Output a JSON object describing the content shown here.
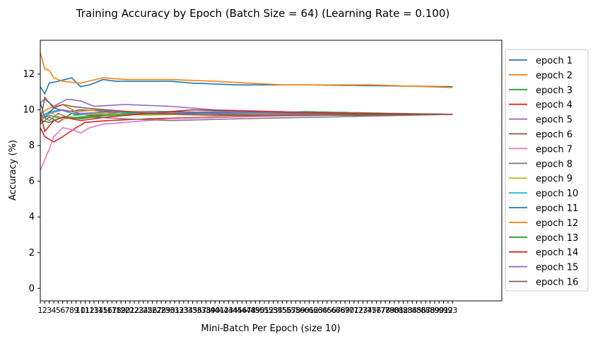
{
  "chart_data": {
    "type": "line",
    "title": "Training Accuracy by Epoch (Batch Size = 64) (Learning Rate = 0.100)",
    "xlabel": "Mini-Batch Per Epoch (size 10)",
    "ylabel": "Accuracy (%)",
    "ylim": [
      -0.7,
      13.9
    ],
    "xlim": [
      1,
      104
    ],
    "yticks": [
      0,
      2,
      4,
      6,
      8,
      10,
      12
    ],
    "x_tick_labels": [
      "1",
      "2",
      "3",
      "4",
      "5",
      "6",
      "7",
      "8",
      "9",
      "10",
      "11",
      "12",
      "13",
      "14",
      "15",
      "16",
      "17",
      "18",
      "19",
      "20",
      "21",
      "22",
      "23",
      "24",
      "25",
      "26",
      "27",
      "28",
      "29",
      "30",
      "31",
      "32",
      "33",
      "34",
      "35",
      "36",
      "37",
      "38",
      "39",
      "40",
      "41",
      "42",
      "43",
      "44",
      "45",
      "46",
      "47",
      "48",
      "49",
      "50",
      "51",
      "52",
      "53",
      "54",
      "55",
      "56",
      "57",
      "58",
      "59",
      "60",
      "61",
      "62",
      "63",
      "64",
      "65",
      "66",
      "67",
      "68",
      "69",
      "70",
      "71",
      "72",
      "73",
      "74",
      "75",
      "76",
      "77",
      "78",
      "79",
      "80",
      "81",
      "82",
      "83",
      "84",
      "85",
      "86",
      "87",
      "88",
      "89",
      "90",
      "91",
      "92",
      "93"
    ],
    "legend_position": "right, outside plot",
    "colors": [
      "#1f77b4",
      "#ff7f0e",
      "#2ca02c",
      "#d62728",
      "#9467bd",
      "#8c564b",
      "#e377c2",
      "#7f7f7f",
      "#bcbd22",
      "#17becf",
      "#1f77b4",
      "#ff7f0e",
      "#2ca02c",
      "#d62728",
      "#9467bd",
      "#8c564b"
    ],
    "series": [
      {
        "name": "epoch 1",
        "anchors": [
          [
            1,
            11.3
          ],
          [
            2,
            10.9
          ],
          [
            3,
            11.5
          ],
          [
            5,
            11.6
          ],
          [
            8,
            11.8
          ],
          [
            10,
            11.3
          ],
          [
            12,
            11.4
          ],
          [
            15,
            11.7
          ],
          [
            18,
            11.6
          ],
          [
            30,
            11.6
          ],
          [
            35,
            11.5
          ],
          [
            45,
            11.4
          ],
          [
            60,
            11.4
          ],
          [
            93,
            11.3
          ]
        ]
      },
      {
        "name": "epoch 2",
        "anchors": [
          [
            1,
            13.2
          ],
          [
            2,
            12.3
          ],
          [
            3,
            12.2
          ],
          [
            4,
            11.8
          ],
          [
            6,
            11.6
          ],
          [
            10,
            11.5
          ],
          [
            15,
            11.8
          ],
          [
            20,
            11.7
          ],
          [
            30,
            11.7
          ],
          [
            40,
            11.6
          ],
          [
            55,
            11.4
          ],
          [
            75,
            11.4
          ],
          [
            93,
            11.25
          ]
        ]
      },
      {
        "name": "epoch 3",
        "anchors": [
          [
            1,
            9.4
          ],
          [
            3,
            9.7
          ],
          [
            6,
            9.5
          ],
          [
            10,
            9.6
          ],
          [
            20,
            9.8
          ],
          [
            40,
            9.7
          ],
          [
            60,
            9.9
          ],
          [
            80,
            9.8
          ],
          [
            93,
            9.75
          ]
        ]
      },
      {
        "name": "epoch 4",
        "anchors": [
          [
            1,
            9.0
          ],
          [
            2,
            8.5
          ],
          [
            4,
            8.2
          ],
          [
            6,
            8.5
          ],
          [
            9,
            9.0
          ],
          [
            11,
            9.3
          ],
          [
            16,
            9.4
          ],
          [
            25,
            9.5
          ],
          [
            40,
            9.6
          ],
          [
            60,
            9.7
          ],
          [
            93,
            9.75
          ]
        ]
      },
      {
        "name": "epoch 5",
        "anchors": [
          [
            1,
            10.4
          ],
          [
            2,
            10.6
          ],
          [
            4,
            10.2
          ],
          [
            7,
            10.6
          ],
          [
            10,
            10.5
          ],
          [
            13,
            10.2
          ],
          [
            20,
            10.3
          ],
          [
            30,
            10.2
          ],
          [
            40,
            10.0
          ],
          [
            55,
            9.9
          ],
          [
            70,
            9.8
          ],
          [
            93,
            9.75
          ]
        ]
      },
      {
        "name": "epoch 6",
        "anchors": [
          [
            1,
            9.2
          ],
          [
            3,
            9.6
          ],
          [
            5,
            9.3
          ],
          [
            8,
            9.8
          ],
          [
            12,
            9.7
          ],
          [
            20,
            9.9
          ],
          [
            35,
            9.8
          ],
          [
            55,
            9.7
          ],
          [
            75,
            9.7
          ],
          [
            93,
            9.75
          ]
        ]
      },
      {
        "name": "epoch 7",
        "anchors": [
          [
            1,
            6.6
          ],
          [
            2,
            7.2
          ],
          [
            3,
            7.8
          ],
          [
            4,
            8.5
          ],
          [
            6,
            9.0
          ],
          [
            8,
            8.9
          ],
          [
            10,
            8.7
          ],
          [
            12,
            9.0
          ],
          [
            15,
            9.2
          ],
          [
            20,
            9.3
          ],
          [
            30,
            9.5
          ],
          [
            45,
            9.6
          ],
          [
            65,
            9.7
          ],
          [
            93,
            9.75
          ]
        ]
      },
      {
        "name": "epoch 8",
        "anchors": [
          [
            1,
            9.7
          ],
          [
            3,
            9.4
          ],
          [
            5,
            9.8
          ],
          [
            8,
            9.5
          ],
          [
            12,
            9.6
          ],
          [
            20,
            9.5
          ],
          [
            30,
            9.4
          ],
          [
            45,
            9.5
          ],
          [
            65,
            9.6
          ],
          [
            93,
            9.75
          ]
        ]
      },
      {
        "name": "epoch 9",
        "anchors": [
          [
            1,
            9.3
          ],
          [
            3,
            9.9
          ],
          [
            6,
            9.5
          ],
          [
            9,
            9.7
          ],
          [
            15,
            9.8
          ],
          [
            25,
            9.7
          ],
          [
            40,
            9.8
          ],
          [
            60,
            9.7
          ],
          [
            93,
            9.75
          ]
        ]
      },
      {
        "name": "epoch 10",
        "anchors": [
          [
            1,
            9.6
          ],
          [
            3,
            9.9
          ],
          [
            6,
            10.0
          ],
          [
            9,
            9.7
          ],
          [
            15,
            9.9
          ],
          [
            25,
            9.8
          ],
          [
            40,
            9.9
          ],
          [
            60,
            9.8
          ],
          [
            93,
            9.75
          ]
        ]
      },
      {
        "name": "epoch 11",
        "anchors": [
          [
            1,
            10.4
          ],
          [
            2,
            9.6
          ],
          [
            4,
            10.1
          ],
          [
            7,
            9.9
          ],
          [
            10,
            10.0
          ],
          [
            18,
            9.9
          ],
          [
            30,
            9.9
          ],
          [
            50,
            9.8
          ],
          [
            93,
            9.75
          ]
        ]
      },
      {
        "name": "epoch 12",
        "anchors": [
          [
            1,
            9.8
          ],
          [
            3,
            10.1
          ],
          [
            6,
            10.3
          ],
          [
            9,
            9.9
          ],
          [
            14,
            10.0
          ],
          [
            22,
            9.9
          ],
          [
            35,
            9.8
          ],
          [
            60,
            9.8
          ],
          [
            93,
            9.75
          ]
        ]
      },
      {
        "name": "epoch 13",
        "anchors": [
          [
            1,
            9.4
          ],
          [
            3,
            9.3
          ],
          [
            6,
            9.6
          ],
          [
            10,
            9.5
          ],
          [
            16,
            9.7
          ],
          [
            28,
            9.8
          ],
          [
            45,
            9.8
          ],
          [
            70,
            9.8
          ],
          [
            93,
            9.75
          ]
        ]
      },
      {
        "name": "epoch 14",
        "anchors": [
          [
            1,
            9.8
          ],
          [
            2,
            8.8
          ],
          [
            4,
            9.4
          ],
          [
            6,
            9.6
          ],
          [
            10,
            9.4
          ],
          [
            16,
            9.6
          ],
          [
            25,
            9.8
          ],
          [
            35,
            10.0
          ],
          [
            50,
            9.9
          ],
          [
            70,
            9.8
          ],
          [
            93,
            9.75
          ]
        ]
      },
      {
        "name": "epoch 15",
        "anchors": [
          [
            1,
            9.5
          ],
          [
            3,
            9.8
          ],
          [
            6,
            10.0
          ],
          [
            10,
            9.8
          ],
          [
            18,
            9.9
          ],
          [
            30,
            9.8
          ],
          [
            50,
            9.8
          ],
          [
            75,
            9.7
          ],
          [
            93,
            9.75
          ]
        ]
      },
      {
        "name": "epoch 16",
        "anchors": [
          [
            1,
            9.3
          ],
          [
            2,
            10.7
          ],
          [
            4,
            10.1
          ],
          [
            6,
            10.3
          ],
          [
            8,
            10.2
          ],
          [
            11,
            10.1
          ],
          [
            16,
            10.0
          ],
          [
            25,
            9.8
          ],
          [
            40,
            9.7
          ],
          [
            60,
            9.7
          ],
          [
            93,
            9.75
          ]
        ]
      }
    ]
  }
}
